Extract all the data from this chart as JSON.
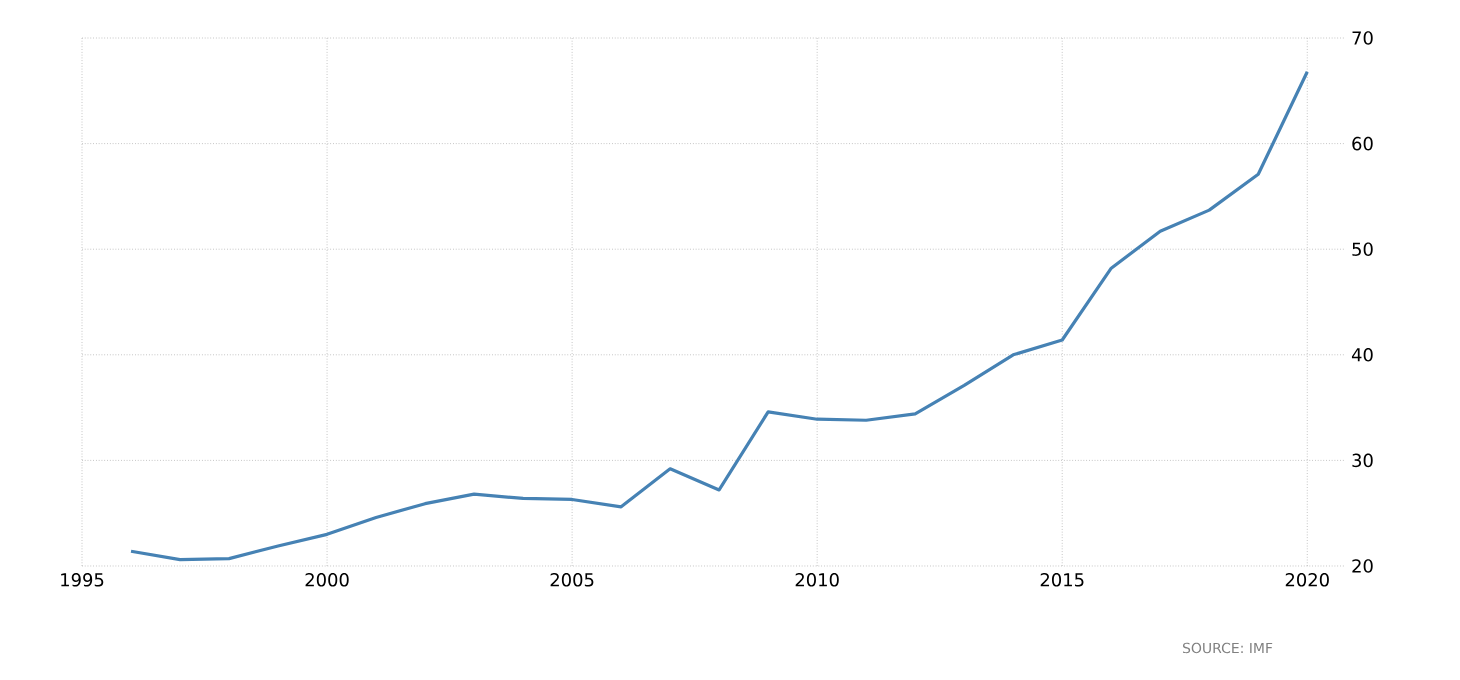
{
  "chart_data": {
    "type": "line",
    "x": [
      1996,
      1997,
      1998,
      1999,
      2000,
      2001,
      2002,
      2003,
      2004,
      2005,
      2006,
      2007,
      2008,
      2009,
      2010,
      2011,
      2012,
      2013,
      2014,
      2015,
      2016,
      2017,
      2018,
      2019,
      2020
    ],
    "series": [
      {
        "color": "#4682b4",
        "values": [
          21.4,
          20.6,
          20.7,
          21.9,
          23.0,
          24.6,
          25.9,
          26.8,
          26.4,
          26.3,
          25.6,
          29.2,
          27.2,
          34.6,
          33.9,
          33.8,
          34.4,
          37.1,
          40.0,
          41.4,
          48.2,
          51.7,
          53.7,
          57.1,
          66.8
        ]
      }
    ],
    "xlim": [
      1995,
      2020.75
    ],
    "xticks": [
      1995,
      2000,
      2005,
      2010,
      2015,
      2020
    ],
    "ylim": [
      20,
      70
    ],
    "yticks": [
      20,
      30,
      40,
      50,
      60,
      70
    ],
    "grid": true,
    "marker": "none",
    "line_style": "solid",
    "annotations": [
      "SOURCE: IMF"
    ]
  }
}
